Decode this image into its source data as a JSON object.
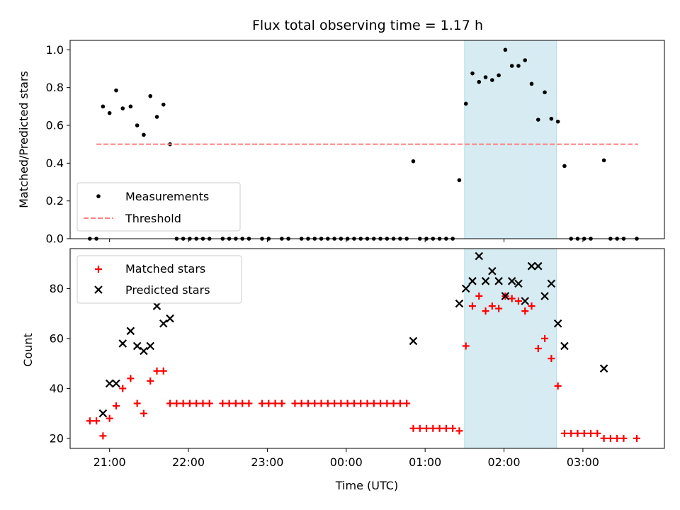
{
  "chart_data": [
    {
      "type": "scatter",
      "title": "Flux total observing time = 1.17 h",
      "ylabel": "Matched/Predicted stars",
      "xlim": [
        "20:30",
        "04:02"
      ],
      "ylim": [
        0,
        1.05
      ],
      "yticks": [
        "0.0",
        "0.2",
        "0.4",
        "0.6",
        "0.8",
        "1.0"
      ],
      "highlight_span": {
        "from": "01:30",
        "to": "02:40",
        "color": "#add8e6"
      },
      "legend_position": "lower-left",
      "series": [
        {
          "name": "Measurements",
          "color": "#000000",
          "marker": "dot",
          "points": [
            [
              "20:45",
              0
            ],
            [
              "20:50",
              0
            ],
            [
              "20:55",
              0.7
            ],
            [
              "21:00",
              0.665
            ],
            [
              "21:05",
              0.785
            ],
            [
              "21:10",
              0.69
            ],
            [
              "21:16",
              0.7
            ],
            [
              "21:21",
              0.6
            ],
            [
              "21:26",
              0.55
            ],
            [
              "21:31",
              0.755
            ],
            [
              "21:36",
              0.645
            ],
            [
              "21:41",
              0.71
            ],
            [
              "21:46",
              0.5
            ],
            [
              "21:51",
              0
            ],
            [
              "21:56",
              0
            ],
            [
              "22:01",
              0
            ],
            [
              "22:06",
              0
            ],
            [
              "22:11",
              0
            ],
            [
              "22:16",
              0
            ],
            [
              "22:26",
              0
            ],
            [
              "22:31",
              0
            ],
            [
              "22:36",
              0
            ],
            [
              "22:41",
              0
            ],
            [
              "22:46",
              0
            ],
            [
              "22:56",
              0
            ],
            [
              "23:01",
              0
            ],
            [
              "23:11",
              0
            ],
            [
              "23:16",
              0
            ],
            [
              "23:26",
              0
            ],
            [
              "23:31",
              0
            ],
            [
              "23:36",
              0
            ],
            [
              "23:41",
              0
            ],
            [
              "23:46",
              0
            ],
            [
              "23:51",
              0
            ],
            [
              "23:56",
              0
            ],
            [
              "00:01",
              0
            ],
            [
              "00:06",
              0
            ],
            [
              "00:11",
              0
            ],
            [
              "00:16",
              0
            ],
            [
              "00:21",
              0
            ],
            [
              "00:26",
              0
            ],
            [
              "00:31",
              0
            ],
            [
              "00:36",
              0
            ],
            [
              "00:41",
              0
            ],
            [
              "00:46",
              0
            ],
            [
              "00:51",
              0.41
            ],
            [
              "00:56",
              0
            ],
            [
              "01:01",
              0
            ],
            [
              "01:06",
              0
            ],
            [
              "01:11",
              0
            ],
            [
              "01:16",
              0
            ],
            [
              "01:21",
              0
            ],
            [
              "01:26",
              0.31
            ],
            [
              "01:31",
              0.715
            ],
            [
              "01:36",
              0.875
            ],
            [
              "01:41",
              0.83
            ],
            [
              "01:46",
              0.855
            ],
            [
              "01:51",
              0.84
            ],
            [
              "01:56",
              0.865
            ],
            [
              "02:01",
              1.0
            ],
            [
              "02:06",
              0.915
            ],
            [
              "02:11",
              0.915
            ],
            [
              "02:16",
              0.945
            ],
            [
              "02:21",
              0.82
            ],
            [
              "02:26",
              0.63
            ],
            [
              "02:31",
              0.775
            ],
            [
              "02:36",
              0.635
            ],
            [
              "02:41",
              0.62
            ],
            [
              "02:46",
              0.385
            ],
            [
              "02:51",
              0
            ],
            [
              "02:56",
              0
            ],
            [
              "03:01",
              0
            ],
            [
              "03:06",
              0
            ],
            [
              "03:16",
              0.415
            ],
            [
              "03:21",
              0
            ],
            [
              "03:26",
              0
            ],
            [
              "03:31",
              0
            ],
            [
              "03:41",
              0
            ]
          ]
        },
        {
          "name": "Threshold",
          "color": "#ff7f7f",
          "style": "dashed",
          "points": [
            [
              "20:50",
              0.5
            ],
            [
              "03:42",
              0.5
            ]
          ]
        }
      ]
    },
    {
      "type": "scatter",
      "xlabel": "Time (UTC)",
      "ylabel": "Count",
      "xlim": [
        "20:30",
        "04:02"
      ],
      "ylim": [
        16,
        96
      ],
      "yticks": [
        "20",
        "40",
        "60",
        "80"
      ],
      "xticks": [
        "21:00",
        "22:00",
        "23:00",
        "00:00",
        "01:00",
        "02:00",
        "03:00"
      ],
      "highlight_span": {
        "from": "01:30",
        "to": "02:40",
        "color": "#add8e6"
      },
      "legend_position": "upper-left",
      "series": [
        {
          "name": "Matched stars",
          "color": "#ff0000",
          "marker": "plus",
          "points": [
            [
              "20:45",
              27
            ],
            [
              "20:50",
              27
            ],
            [
              "20:55",
              21
            ],
            [
              "21:00",
              28
            ],
            [
              "21:05",
              33
            ],
            [
              "21:10",
              40
            ],
            [
              "21:16",
              44
            ],
            [
              "21:21",
              34
            ],
            [
              "21:26",
              30
            ],
            [
              "21:31",
              43
            ],
            [
              "21:36",
              47
            ],
            [
              "21:41",
              47
            ],
            [
              "21:46",
              34
            ],
            [
              "21:51",
              34
            ],
            [
              "21:56",
              34
            ],
            [
              "22:01",
              34
            ],
            [
              "22:06",
              34
            ],
            [
              "22:11",
              34
            ],
            [
              "22:16",
              34
            ],
            [
              "22:26",
              34
            ],
            [
              "22:31",
              34
            ],
            [
              "22:36",
              34
            ],
            [
              "22:41",
              34
            ],
            [
              "22:46",
              34
            ],
            [
              "22:56",
              34
            ],
            [
              "23:01",
              34
            ],
            [
              "23:06",
              34
            ],
            [
              "23:11",
              34
            ],
            [
              "23:21",
              34
            ],
            [
              "23:26",
              34
            ],
            [
              "23:31",
              34
            ],
            [
              "23:36",
              34
            ],
            [
              "23:41",
              34
            ],
            [
              "23:46",
              34
            ],
            [
              "23:51",
              34
            ],
            [
              "23:56",
              34
            ],
            [
              "00:01",
              34
            ],
            [
              "00:06",
              34
            ],
            [
              "00:11",
              34
            ],
            [
              "00:16",
              34
            ],
            [
              "00:21",
              34
            ],
            [
              "00:26",
              34
            ],
            [
              "00:31",
              34
            ],
            [
              "00:36",
              34
            ],
            [
              "00:41",
              34
            ],
            [
              "00:46",
              34
            ],
            [
              "00:51",
              24
            ],
            [
              "00:56",
              24
            ],
            [
              "01:01",
              24
            ],
            [
              "01:06",
              24
            ],
            [
              "01:11",
              24
            ],
            [
              "01:16",
              24
            ],
            [
              "01:21",
              24
            ],
            [
              "01:26",
              23
            ],
            [
              "01:31",
              57
            ],
            [
              "01:36",
              73
            ],
            [
              "01:41",
              77
            ],
            [
              "01:46",
              71
            ],
            [
              "01:51",
              73
            ],
            [
              "01:56",
              72
            ],
            [
              "02:01",
              77
            ],
            [
              "02:06",
              76
            ],
            [
              "02:11",
              75
            ],
            [
              "02:16",
              71
            ],
            [
              "02:21",
              73
            ],
            [
              "02:26",
              56
            ],
            [
              "02:31",
              60
            ],
            [
              "02:36",
              52
            ],
            [
              "02:41",
              41
            ],
            [
              "02:46",
              22
            ],
            [
              "02:51",
              22
            ],
            [
              "02:56",
              22
            ],
            [
              "03:01",
              22
            ],
            [
              "03:06",
              22
            ],
            [
              "03:11",
              22
            ],
            [
              "03:16",
              20
            ],
            [
              "03:21",
              20
            ],
            [
              "03:26",
              20
            ],
            [
              "03:31",
              20
            ],
            [
              "03:41",
              20
            ]
          ]
        },
        {
          "name": "Predicted stars",
          "color": "#000000",
          "marker": "x",
          "points": [
            [
              "20:55",
              30
            ],
            [
              "21:00",
              42
            ],
            [
              "21:05",
              42
            ],
            [
              "21:10",
              58
            ],
            [
              "21:16",
              63
            ],
            [
              "21:21",
              57
            ],
            [
              "21:26",
              55
            ],
            [
              "21:31",
              57
            ],
            [
              "21:36",
              73
            ],
            [
              "21:41",
              66
            ],
            [
              "21:46",
              68
            ],
            [
              "00:51",
              59
            ],
            [
              "01:26",
              74
            ],
            [
              "01:31",
              80
            ],
            [
              "01:36",
              83
            ],
            [
              "01:41",
              93
            ],
            [
              "01:46",
              83
            ],
            [
              "01:51",
              87
            ],
            [
              "01:56",
              83
            ],
            [
              "02:01",
              77
            ],
            [
              "02:06",
              83
            ],
            [
              "02:11",
              82
            ],
            [
              "02:16",
              75
            ],
            [
              "02:21",
              89
            ],
            [
              "02:26",
              89
            ],
            [
              "02:31",
              77
            ],
            [
              "02:36",
              82
            ],
            [
              "02:41",
              66
            ],
            [
              "02:46",
              57
            ],
            [
              "03:16",
              48
            ]
          ]
        }
      ]
    }
  ]
}
